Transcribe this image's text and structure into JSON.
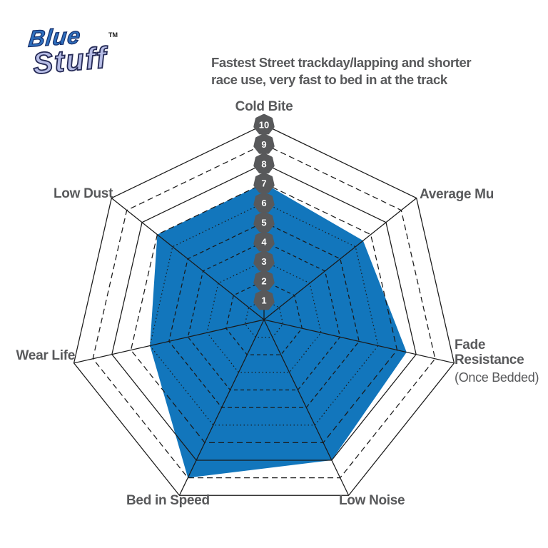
{
  "logo": {
    "line1": "Blue",
    "line2": "Stuff",
    "trademark": "TM"
  },
  "header": {
    "title_line1": "Fastest Street trackday/lapping and shorter",
    "title_line2": "race use, very fast to bed in at the track"
  },
  "chart_data": {
    "type": "radar",
    "title": "Fastest Street trackday/lapping and shorter race use, very fast to bed in at the track",
    "scale_min": 1,
    "scale_max": 10,
    "scale_labels": [
      "1",
      "2",
      "3",
      "4",
      "5",
      "6",
      "7",
      "8",
      "9",
      "10"
    ],
    "grid": true,
    "legend": "none",
    "axes": [
      {
        "label": "Cold Bite",
        "value": 7
      },
      {
        "label": "Average Mu",
        "value": 6.5
      },
      {
        "label": "Fade Resistance",
        "sublabel": "(Once Bedded)",
        "value": 7.5
      },
      {
        "label": "Low Noise",
        "value": 8
      },
      {
        "label": "Bed in Speed",
        "value": 9
      },
      {
        "label": "Wear Life",
        "value": 6
      },
      {
        "label": "Low Dust",
        "value": 7
      }
    ],
    "colors": {
      "series_fill": "#1276bc",
      "grid_line": "#1a1a1a",
      "badge_bg": "#58595b",
      "badge_text": "#ffffff",
      "label_text": "#58595b",
      "logo_blue": "#2e6fbe",
      "logo_lavender": "#b7bde6"
    }
  }
}
